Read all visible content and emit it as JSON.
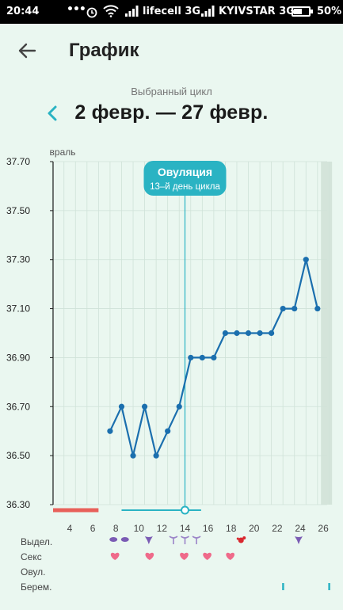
{
  "status_bar": {
    "time": "20:44",
    "dots": "•••",
    "operator1": "lifecell 3G",
    "operator2": "KYIVSTAR 3G",
    "battery": "50%"
  },
  "header": {
    "title": "График",
    "back_icon": "arrow-left-icon"
  },
  "cycle": {
    "caption": "Выбранный цикл",
    "range": "2 февр. — 27 февр.",
    "prev_icon": "chevron-left-icon"
  },
  "ovulation": {
    "title": "Овуляция",
    "subtitle": "13–й день цикла"
  },
  "rows": {
    "discharge": "Выдел.",
    "sex": "Секс",
    "ovulation": "Овул.",
    "pregnancy": "Берем."
  },
  "colors": {
    "accent": "#2ab3c3",
    "line": "#1b6fae",
    "period": "#e8605a",
    "heart": "#ef6a8a",
    "discharge": "#7a5bb4",
    "blood": "#d9272e"
  },
  "chart_data": {
    "type": "line",
    "month_label": "февраль",
    "ylim": [
      36.3,
      37.7
    ],
    "yticks": [
      "37.70",
      "37.50",
      "37.30",
      "37.10",
      "36.90",
      "36.70",
      "36.50",
      "36.30"
    ],
    "xlim": [
      2,
      27
    ],
    "xticks": [
      4,
      6,
      8,
      10,
      12,
      14,
      16,
      18,
      20,
      22,
      24,
      26
    ],
    "ovulation_day": 14,
    "series": [
      {
        "x": [
          7.5,
          8.5,
          9.5,
          10.5,
          11.5,
          12.5,
          13.5,
          14.5,
          15.5,
          16.5,
          17.5,
          18.5,
          19.5,
          20.5,
          21.5,
          22.5,
          23.5,
          24.5,
          25.5
        ],
        "values": [
          36.6,
          36.7,
          36.5,
          36.7,
          36.5,
          36.6,
          36.7,
          36.9,
          36.9,
          36.9,
          37.0,
          37.0,
          37.0,
          37.0,
          37.0,
          37.1,
          37.1,
          37.3,
          37.1
        ]
      }
    ],
    "period_days": [
      2,
      3,
      4,
      5,
      6
    ],
    "markers": {
      "discharge_creamy": [
        8,
        9
      ],
      "discharge_drop": [
        11,
        24
      ],
      "discharge_eggwhite": [
        13,
        14,
        15
      ],
      "discharge_blood": [
        19
      ],
      "sex": [
        8,
        11,
        14,
        16,
        18
      ],
      "pregnancy_test": [
        22.5,
        26.5
      ]
    },
    "grid": true
  }
}
